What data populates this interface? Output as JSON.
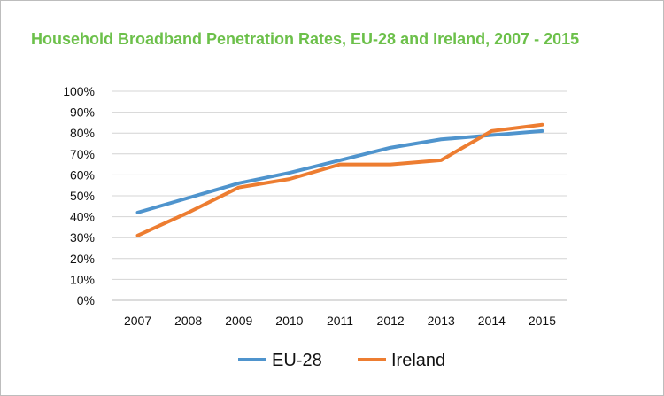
{
  "chart_data": {
    "type": "line",
    "title": "Household Broadband Penetration Rates, EU-28 and Ireland, 2007 - 2015",
    "xlabel": "",
    "ylabel": "",
    "categories": [
      "2007",
      "2008",
      "2009",
      "2010",
      "2011",
      "2012",
      "2013",
      "2014",
      "2015"
    ],
    "ylim": [
      0,
      100
    ],
    "yticks": [
      "0%",
      "10%",
      "20%",
      "30%",
      "40%",
      "50%",
      "60%",
      "70%",
      "80%",
      "90%",
      "100%"
    ],
    "grid": true,
    "legend": "bottom",
    "series": [
      {
        "name": "EU-28",
        "color": "#4f94cd",
        "values": [
          42,
          49,
          56,
          61,
          67,
          73,
          77,
          79,
          81
        ]
      },
      {
        "name": "Ireland",
        "color": "#ed7d31",
        "values": [
          31,
          42,
          54,
          58,
          65,
          65,
          67,
          81,
          84
        ]
      }
    ]
  }
}
